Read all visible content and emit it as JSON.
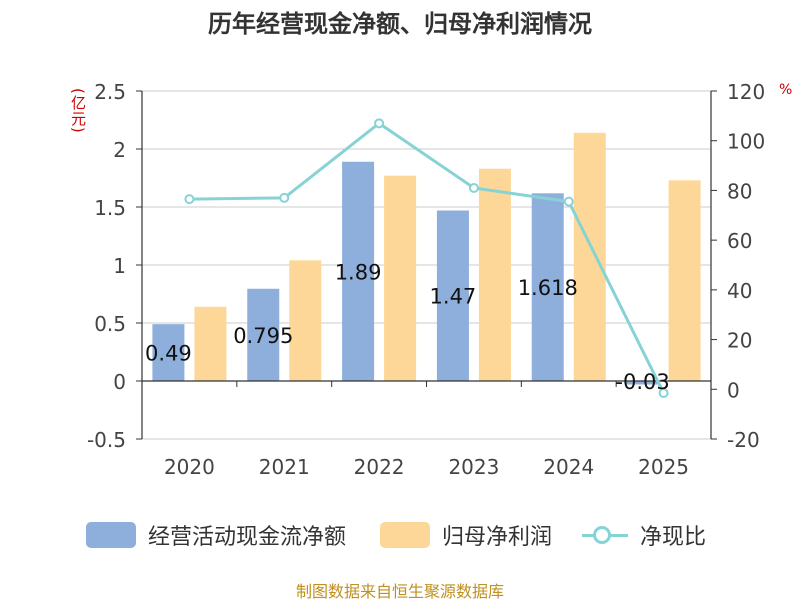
{
  "chart_data": {
    "type": "bar+line",
    "title": "历年经营现金净额、归母净利润情况",
    "left_unit": "(亿元)",
    "right_unit": "%",
    "categories": [
      "2020",
      "2021",
      "2022",
      "2023",
      "2024",
      "2025"
    ],
    "left_axis": {
      "min": -0.5,
      "max": 2.5,
      "ticks": [
        "-0.5",
        "0",
        "0.5",
        "1",
        "1.5",
        "2",
        "2.5"
      ]
    },
    "right_axis": {
      "min": -20,
      "max": 120,
      "ticks": [
        "-20",
        "0",
        "20",
        "40",
        "60",
        "80",
        "100",
        "120"
      ]
    },
    "series": [
      {
        "name": "经营活动现金流净额",
        "type": "bar",
        "axis": "left",
        "color": "#8eaedb",
        "values": [
          0.49,
          0.795,
          1.89,
          1.47,
          1.618,
          -0.03
        ],
        "labels": [
          "0.49",
          "0.795",
          "1.89",
          "1.47",
          "1.618",
          "-0.03"
        ]
      },
      {
        "name": "归母净利润",
        "type": "bar",
        "axis": "left",
        "color": "#fdd797",
        "values": [
          0.64,
          1.04,
          1.77,
          1.83,
          2.14,
          1.73
        ]
      },
      {
        "name": "净现比",
        "type": "line",
        "axis": "right",
        "color": "#86d3d6",
        "values": [
          76.5,
          77,
          107,
          81,
          75.5,
          -1.5
        ]
      }
    ],
    "gridlines": true
  },
  "colors": {
    "unit": "#cc0000",
    "source": "#c09020",
    "title": "#333333"
  },
  "source": "制图数据来自恒生聚源数据库"
}
